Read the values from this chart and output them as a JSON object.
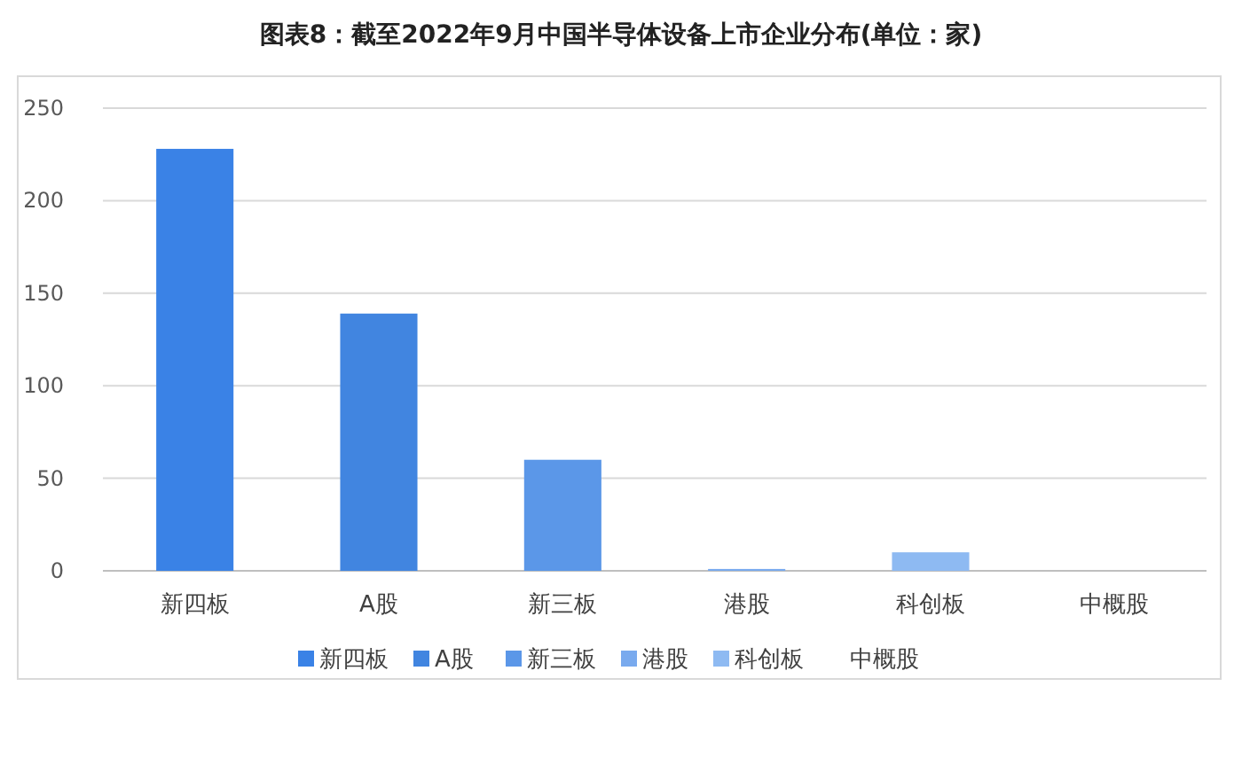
{
  "chart_data": {
    "type": "bar",
    "title": "图表8：截至2022年9月中国半导体设备上市企业分布(单位：家)",
    "categories": [
      "新四板",
      "A股",
      "新三板",
      "港股",
      "科创板",
      "中概股"
    ],
    "series": [
      {
        "name": "新四板",
        "color": "#3a82e6",
        "values": [
          228,
          null,
          null,
          null,
          null,
          null
        ]
      },
      {
        "name": "A股",
        "color": "#4185e0",
        "values": [
          null,
          139,
          null,
          null,
          null,
          null
        ]
      },
      {
        "name": "新三板",
        "color": "#5b97e8",
        "values": [
          null,
          null,
          60,
          null,
          null,
          null
        ]
      },
      {
        "name": "港股",
        "color": "#79aaee",
        "values": [
          null,
          null,
          null,
          1,
          null,
          null
        ]
      },
      {
        "name": "科创板",
        "color": "#8ebaf2",
        "values": [
          null,
          null,
          null,
          null,
          10,
          null
        ]
      },
      {
        "name": "中概股",
        "values": [
          null,
          null,
          null,
          null,
          null,
          0
        ]
      }
    ],
    "ylim": [
      0,
      250
    ],
    "yticks": [
      0,
      50,
      100,
      150,
      200,
      250
    ],
    "grid": "y",
    "legend": "bottom"
  }
}
